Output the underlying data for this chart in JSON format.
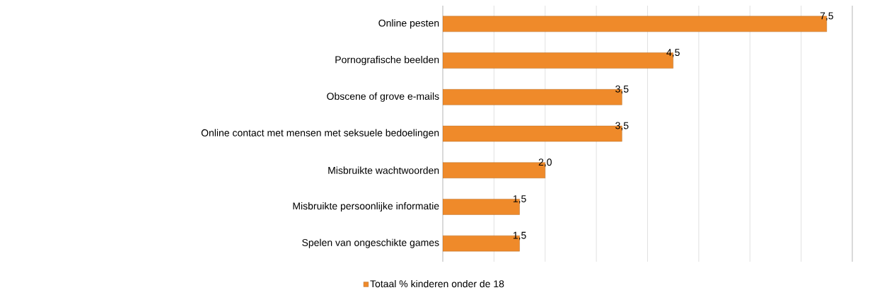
{
  "chart_data": {
    "type": "bar",
    "orientation": "horizontal",
    "categories": [
      "Online pesten",
      "Pornografische beelden",
      "Obscene of grove e-mails",
      "Online contact met mensen met seksuele bedoelingen",
      "Misbruikte wachtwoorden",
      "Misbruikte persoonlijke informatie",
      "Spelen van ongeschikte games"
    ],
    "series": [
      {
        "name": "Totaal % kinderen onder de 18",
        "color": "#ef8a2a",
        "values": [
          7.5,
          4.5,
          3.5,
          3.5,
          2.0,
          1.5,
          1.5
        ],
        "value_labels": [
          "7,5",
          "4,5",
          "3,5",
          "3,5",
          "2,0",
          "1,5",
          "1,5"
        ]
      }
    ],
    "xlim": [
      0,
      8
    ],
    "xticks": [
      {
        "value": 0,
        "label": null
      },
      {
        "value": 1,
        "label": null
      },
      {
        "value": 2,
        "label": null
      },
      {
        "value": 3,
        "label": null
      },
      {
        "value": 4,
        "label": null
      },
      {
        "value": 5,
        "label": null
      },
      {
        "value": 6,
        "label": null
      },
      {
        "value": 7,
        "label": null
      },
      {
        "value": 8,
        "label": null
      }
    ],
    "grid": "x",
    "legend": "bottom",
    "tick_labels": "y"
  }
}
